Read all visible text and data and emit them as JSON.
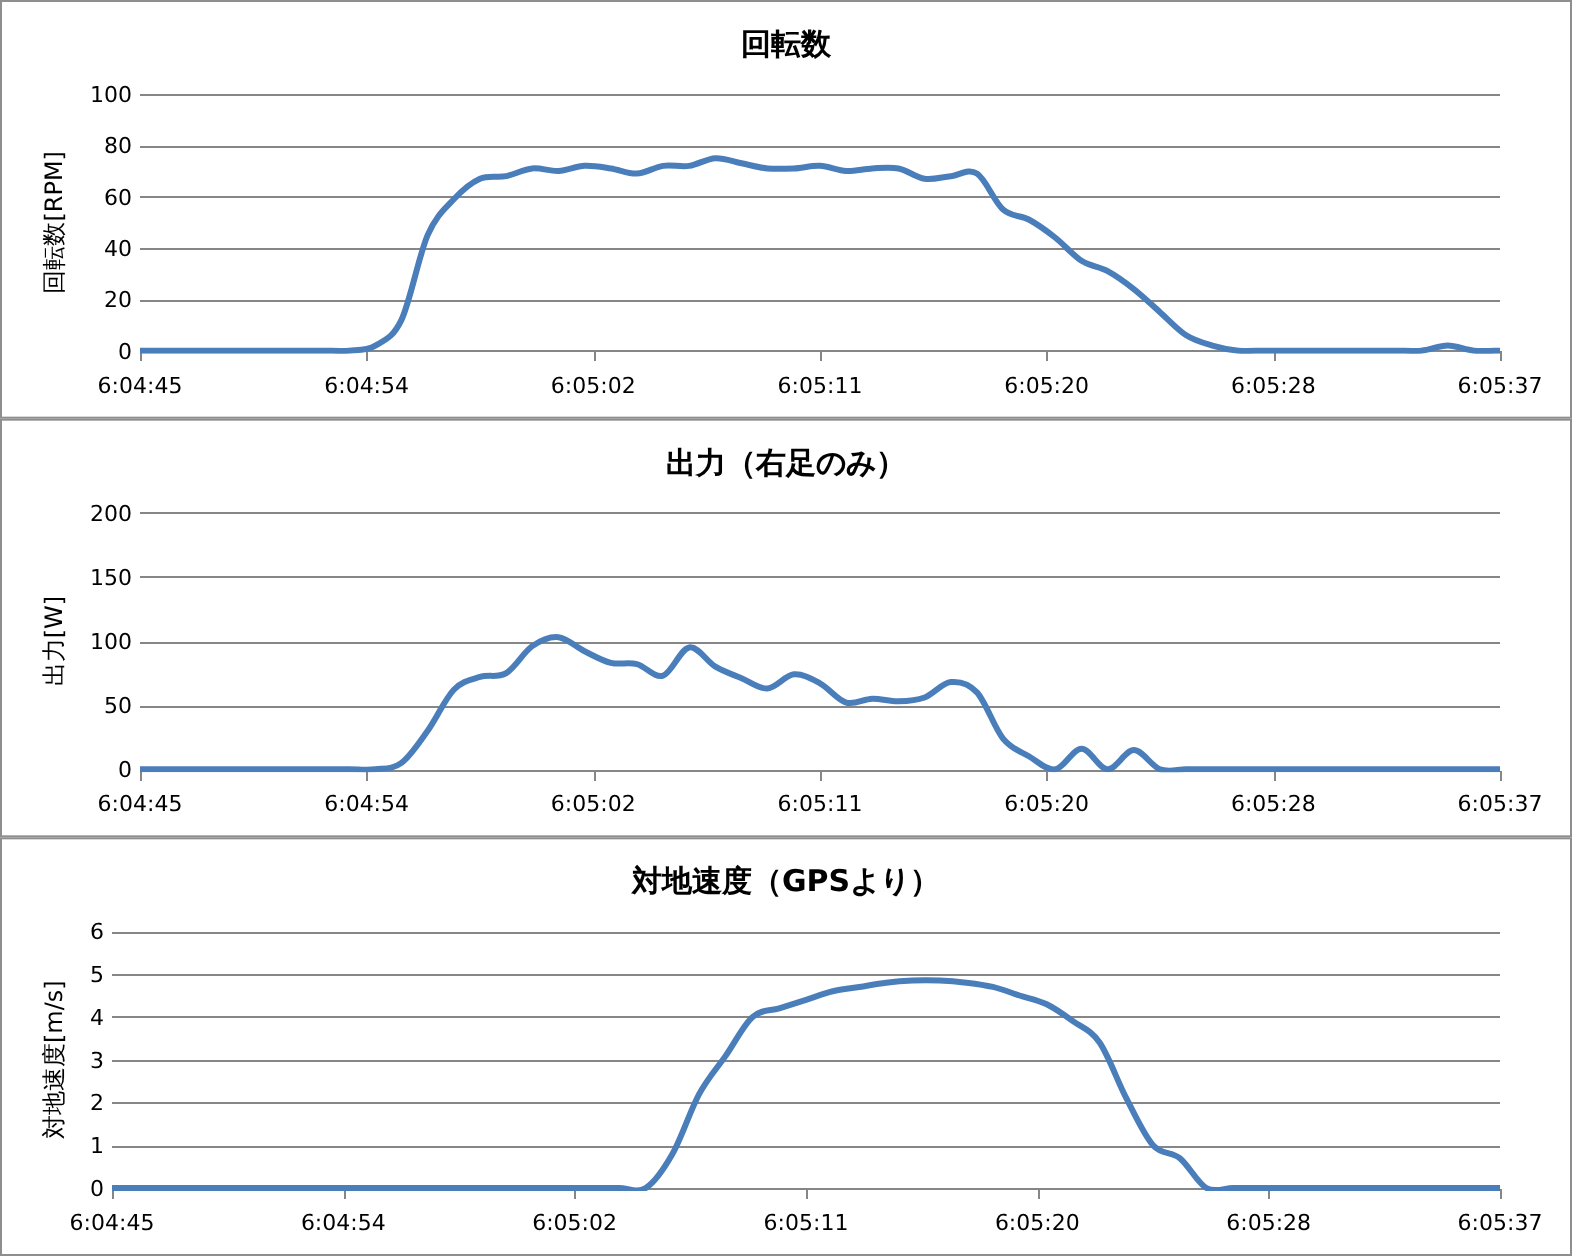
{
  "chart_data": [
    {
      "type": "line",
      "title": "回転数",
      "ylabel": "回転数[RPM]",
      "color": "#4a7ebb",
      "grid": "y",
      "xlim": [
        6.079167,
        6.093611
      ],
      "ylim": [
        0,
        100
      ],
      "xticks": [
        {
          "value": 6.079167,
          "label": "6:04:45"
        },
        {
          "value": 6.081574,
          "label": "6:04:54"
        },
        {
          "value": 6.083981,
          "label": "6:05:02"
        },
        {
          "value": 6.086389,
          "label": "6:05:11"
        },
        {
          "value": 6.088796,
          "label": "6:05:20"
        },
        {
          "value": 6.091204,
          "label": "6:05:28"
        },
        {
          "value": 6.093611,
          "label": "6:05:37"
        }
      ],
      "yticks": [
        0,
        20,
        40,
        60,
        80,
        100
      ],
      "x": [
        6.079167,
        6.079444,
        6.079722,
        6.08,
        6.080278,
        6.080556,
        6.080833,
        6.081111,
        6.081389,
        6.081667,
        6.081944,
        6.082222,
        6.0825,
        6.082778,
        6.083056,
        6.083333,
        6.083611,
        6.083889,
        6.084167,
        6.084444,
        6.084722,
        6.085,
        6.085278,
        6.085556,
        6.085833,
        6.086111,
        6.086389,
        6.086667,
        6.086944,
        6.087222,
        6.0875,
        6.087778,
        6.088056,
        6.088333,
        6.088611,
        6.088889,
        6.089167,
        6.089444,
        6.089722,
        6.09,
        6.090278,
        6.090556,
        6.090833,
        6.091111,
        6.091389,
        6.091667,
        6.091944,
        6.092222,
        6.0925,
        6.092778,
        6.093056,
        6.093333,
        6.093611
      ],
      "values": [
        0,
        0,
        0,
        0,
        0,
        0,
        0,
        0,
        0,
        2,
        12,
        45,
        59,
        67,
        68,
        71,
        70,
        72,
        71,
        69,
        72,
        72,
        75,
        73,
        71,
        71,
        72,
        70,
        71,
        71,
        67,
        68,
        69,
        55,
        51,
        44,
        35,
        31,
        24,
        15,
        6,
        2,
        0,
        0,
        0,
        0,
        0,
        0,
        0,
        0,
        2,
        0,
        0
      ]
    },
    {
      "type": "line",
      "title": "出力（右足のみ）",
      "ylabel": "出力[W]",
      "color": "#4a7ebb",
      "grid": "y",
      "xlim": [
        6.079167,
        6.093611
      ],
      "ylim": [
        0,
        200
      ],
      "xticks": [
        {
          "value": 6.079167,
          "label": "6:04:45"
        },
        {
          "value": 6.081574,
          "label": "6:04:54"
        },
        {
          "value": 6.083981,
          "label": "6:05:02"
        },
        {
          "value": 6.086389,
          "label": "6:05:11"
        },
        {
          "value": 6.088796,
          "label": "6:05:20"
        },
        {
          "value": 6.091204,
          "label": "6:05:28"
        },
        {
          "value": 6.093611,
          "label": "6:05:37"
        }
      ],
      "yticks": [
        0,
        50,
        100,
        150,
        200
      ],
      "x": [
        6.079167,
        6.079444,
        6.079722,
        6.08,
        6.080278,
        6.080556,
        6.080833,
        6.081111,
        6.081389,
        6.081667,
        6.081944,
        6.082222,
        6.0825,
        6.082778,
        6.083056,
        6.083333,
        6.083611,
        6.083889,
        6.084167,
        6.084444,
        6.084722,
        6.085,
        6.085278,
        6.085556,
        6.085833,
        6.086111,
        6.086389,
        6.086667,
        6.086944,
        6.087222,
        6.0875,
        6.087778,
        6.088056,
        6.088333,
        6.088611,
        6.088889,
        6.089167,
        6.089444,
        6.089722,
        6.09,
        6.090278,
        6.090556,
        6.090833,
        6.091111,
        6.091389,
        6.091667,
        6.091944,
        6.092222,
        6.0925,
        6.092778,
        6.093056,
        6.093333,
        6.093611
      ],
      "values": [
        0,
        0,
        0,
        0,
        0,
        0,
        0,
        0,
        0,
        0,
        5,
        30,
        62,
        72,
        75,
        96,
        103,
        92,
        83,
        82,
        73,
        95,
        80,
        71,
        63,
        74,
        67,
        52,
        55,
        53,
        56,
        68,
        60,
        24,
        10,
        0,
        16,
        0,
        15,
        0,
        0,
        0,
        0,
        0,
        0,
        0,
        0,
        0,
        0,
        0,
        0,
        0,
        0
      ]
    },
    {
      "type": "line",
      "title": "対地速度（GPSより）",
      "ylabel": "対地速度[m/s]",
      "color": "#4a7ebb",
      "grid": "y",
      "xlim": [
        6.079167,
        6.093611
      ],
      "ylim": [
        0,
        6
      ],
      "xticks": [
        {
          "value": 6.079167,
          "label": "6:04:45"
        },
        {
          "value": 6.081574,
          "label": "6:04:54"
        },
        {
          "value": 6.083981,
          "label": "6:05:02"
        },
        {
          "value": 6.086389,
          "label": "6:05:11"
        },
        {
          "value": 6.088796,
          "label": "6:05:20"
        },
        {
          "value": 6.091204,
          "label": "6:05:28"
        },
        {
          "value": 6.093611,
          "label": "6:05:37"
        }
      ],
      "yticks": [
        0,
        1,
        2,
        3,
        4,
        5,
        6
      ],
      "x": [
        6.079167,
        6.079444,
        6.079722,
        6.08,
        6.080278,
        6.080556,
        6.080833,
        6.081111,
        6.081389,
        6.081667,
        6.081944,
        6.082222,
        6.0825,
        6.082778,
        6.083056,
        6.083333,
        6.083611,
        6.083889,
        6.084167,
        6.084444,
        6.084722,
        6.085,
        6.085278,
        6.085556,
        6.085833,
        6.086111,
        6.086389,
        6.086667,
        6.086944,
        6.087222,
        6.0875,
        6.087778,
        6.088056,
        6.088333,
        6.088611,
        6.088889,
        6.089167,
        6.089444,
        6.089722,
        6.09,
        6.090278,
        6.090556,
        6.090833,
        6.091111,
        6.091389,
        6.091667,
        6.091944,
        6.092222,
        6.0925,
        6.092778,
        6.093056,
        6.093333,
        6.093611
      ],
      "values": [
        0,
        0,
        0,
        0,
        0,
        0,
        0,
        0,
        0,
        0,
        0,
        0,
        0,
        0,
        0,
        0,
        0,
        0,
        0,
        0,
        0,
        0.8,
        2.2,
        3.1,
        4.0,
        4.2,
        4.4,
        4.6,
        4.7,
        4.8,
        4.85,
        4.85,
        4.8,
        4.7,
        4.5,
        4.3,
        3.9,
        3.4,
        2.1,
        1.0,
        0.7,
        0,
        0,
        0,
        0,
        0,
        0,
        0,
        0,
        0,
        0,
        0,
        0
      ]
    }
  ]
}
